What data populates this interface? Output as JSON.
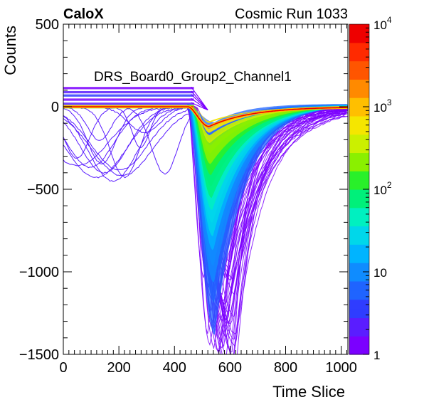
{
  "header": {
    "experiment_label": "CaloX",
    "run_label": "Cosmic Run 1033"
  },
  "chart_data": {
    "type": "heatmap",
    "title": "DRS_Board0_Group2_Channel1",
    "xlabel": "Time Slice",
    "ylabel": "Counts",
    "xlim": [
      0,
      1024
    ],
    "ylim": [
      -1500,
      500
    ],
    "x_ticks": [
      0,
      200,
      400,
      600,
      800,
      1000
    ],
    "y_ticks": [
      500,
      0,
      -500,
      -1000,
      -1500
    ],
    "x_tick_labels": [
      "0",
      "200",
      "400",
      "600",
      "800",
      "1000"
    ],
    "y_tick_labels": [
      "500",
      "0",
      "−500",
      "−1000",
      "−1500"
    ],
    "z_scale": "log",
    "zlim": [
      1,
      10000
    ],
    "z_tick_labels": [
      {
        "value": 1,
        "label": "1"
      },
      {
        "value": 10,
        "label": "10"
      },
      {
        "value": 100,
        "label": "10",
        "exp": "2"
      },
      {
        "value": 1000,
        "label": "10",
        "exp": "3"
      },
      {
        "value": 10000,
        "label": "10",
        "exp": "4"
      }
    ],
    "grid": false,
    "baseline": 0,
    "pulse": {
      "mean_start": 450,
      "mean_minimum_x": 525,
      "mean_minimum_y": -120,
      "mean_recovery_end": 1024,
      "deep_traces_minimum_y": -1500
    },
    "pre_pulse_bands": [
      120,
      95,
      75,
      50,
      25
    ],
    "palette": [
      "#7b00ff",
      "#5a1dff",
      "#2f3dff",
      "#1f64ff",
      "#0f8cff",
      "#00b4ff",
      "#00d7ea",
      "#00f0c0",
      "#00f07a",
      "#29f02a",
      "#8af000",
      "#cbf000",
      "#f5e600",
      "#ffbf00",
      "#ff8a00",
      "#ff5500",
      "#ff2a00",
      "#ee0000"
    ]
  }
}
